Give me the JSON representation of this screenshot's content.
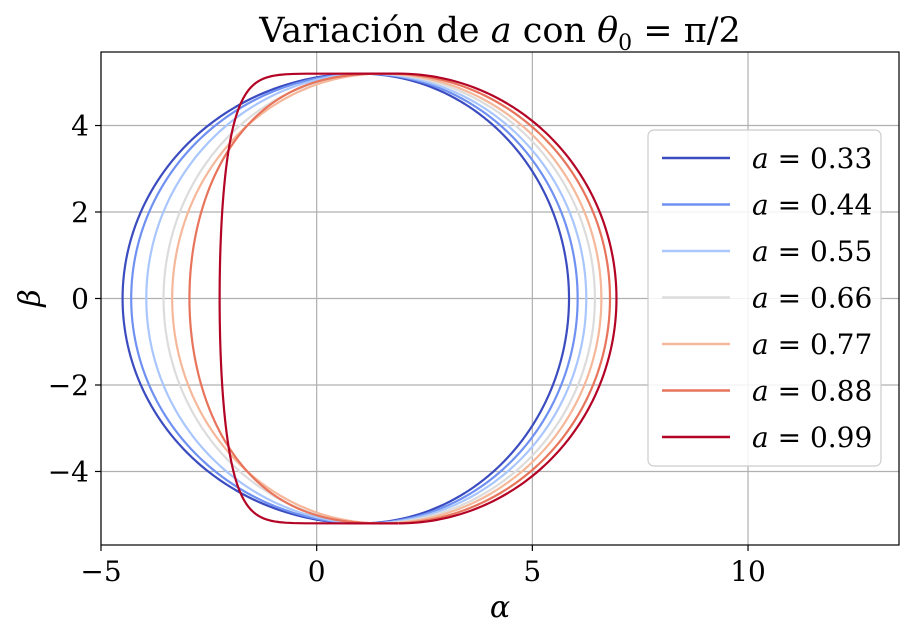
{
  "chart_data": {
    "type": "line",
    "title": "Variación de a con θ₀ = π/2",
    "title_parts": {
      "prefix": "Variación de ",
      "var": "a",
      "mid": " con ",
      "theta": "θ",
      "sub": "0",
      "suffix": " = π/2"
    },
    "xlabel": "α",
    "ylabel": "β",
    "xlim": [
      -5,
      13.5
    ],
    "ylim": [
      -5.7,
      5.7
    ],
    "xticks": [
      -5,
      0,
      5,
      10
    ],
    "xtick_labels": [
      "−5",
      "0",
      "5",
      "10"
    ],
    "yticks": [
      -4,
      -2,
      0,
      2,
      4
    ],
    "ytick_labels": [
      "−4",
      "−2",
      "0",
      "2",
      "4"
    ],
    "grid": true,
    "legend_position": "right",
    "series": [
      {
        "name": "a = 0.33",
        "label_var": "a",
        "label_val": " = 0.33",
        "color": "#3b4cc0",
        "a": 0.33,
        "x_min": -4.5,
        "x_max": 5.85,
        "top_x": 1.0,
        "y_max": 5.2
      },
      {
        "name": "a = 0.44",
        "label_var": "a",
        "label_val": " = 0.44",
        "color": "#6f91f2",
        "a": 0.44,
        "x_min": -4.3,
        "x_max": 6.05,
        "top_x": 1.1,
        "y_max": 5.2
      },
      {
        "name": "a = 0.55",
        "label_var": "a",
        "label_val": " = 0.55",
        "color": "#a9c6fd",
        "a": 0.55,
        "x_min": -3.95,
        "x_max": 6.25,
        "top_x": 1.2,
        "y_max": 5.2
      },
      {
        "name": "a = 0.66",
        "label_var": "a",
        "label_val": " = 0.66",
        "color": "#dddcdc",
        "a": 0.66,
        "x_min": -3.55,
        "x_max": 6.45,
        "top_x": 1.35,
        "y_max": 5.2
      },
      {
        "name": "a = 0.77",
        "label_var": "a",
        "label_val": " = 0.77",
        "color": "#f5b89a",
        "a": 0.77,
        "x_min": -3.35,
        "x_max": 6.6,
        "top_x": 1.5,
        "y_max": 5.2
      },
      {
        "name": "a = 0.88",
        "label_var": "a",
        "label_val": " = 0.88",
        "color": "#e7745b",
        "a": 0.88,
        "x_min": -2.95,
        "x_max": 6.8,
        "top_x": 1.7,
        "y_max": 5.2
      },
      {
        "name": "a = 0.99",
        "label_var": "a",
        "label_val": " = 0.99",
        "color": "#b40426",
        "a": 0.99,
        "x_min": -2.25,
        "x_max": 6.95,
        "top_x": 1.9,
        "y_max": 5.2
      }
    ]
  }
}
